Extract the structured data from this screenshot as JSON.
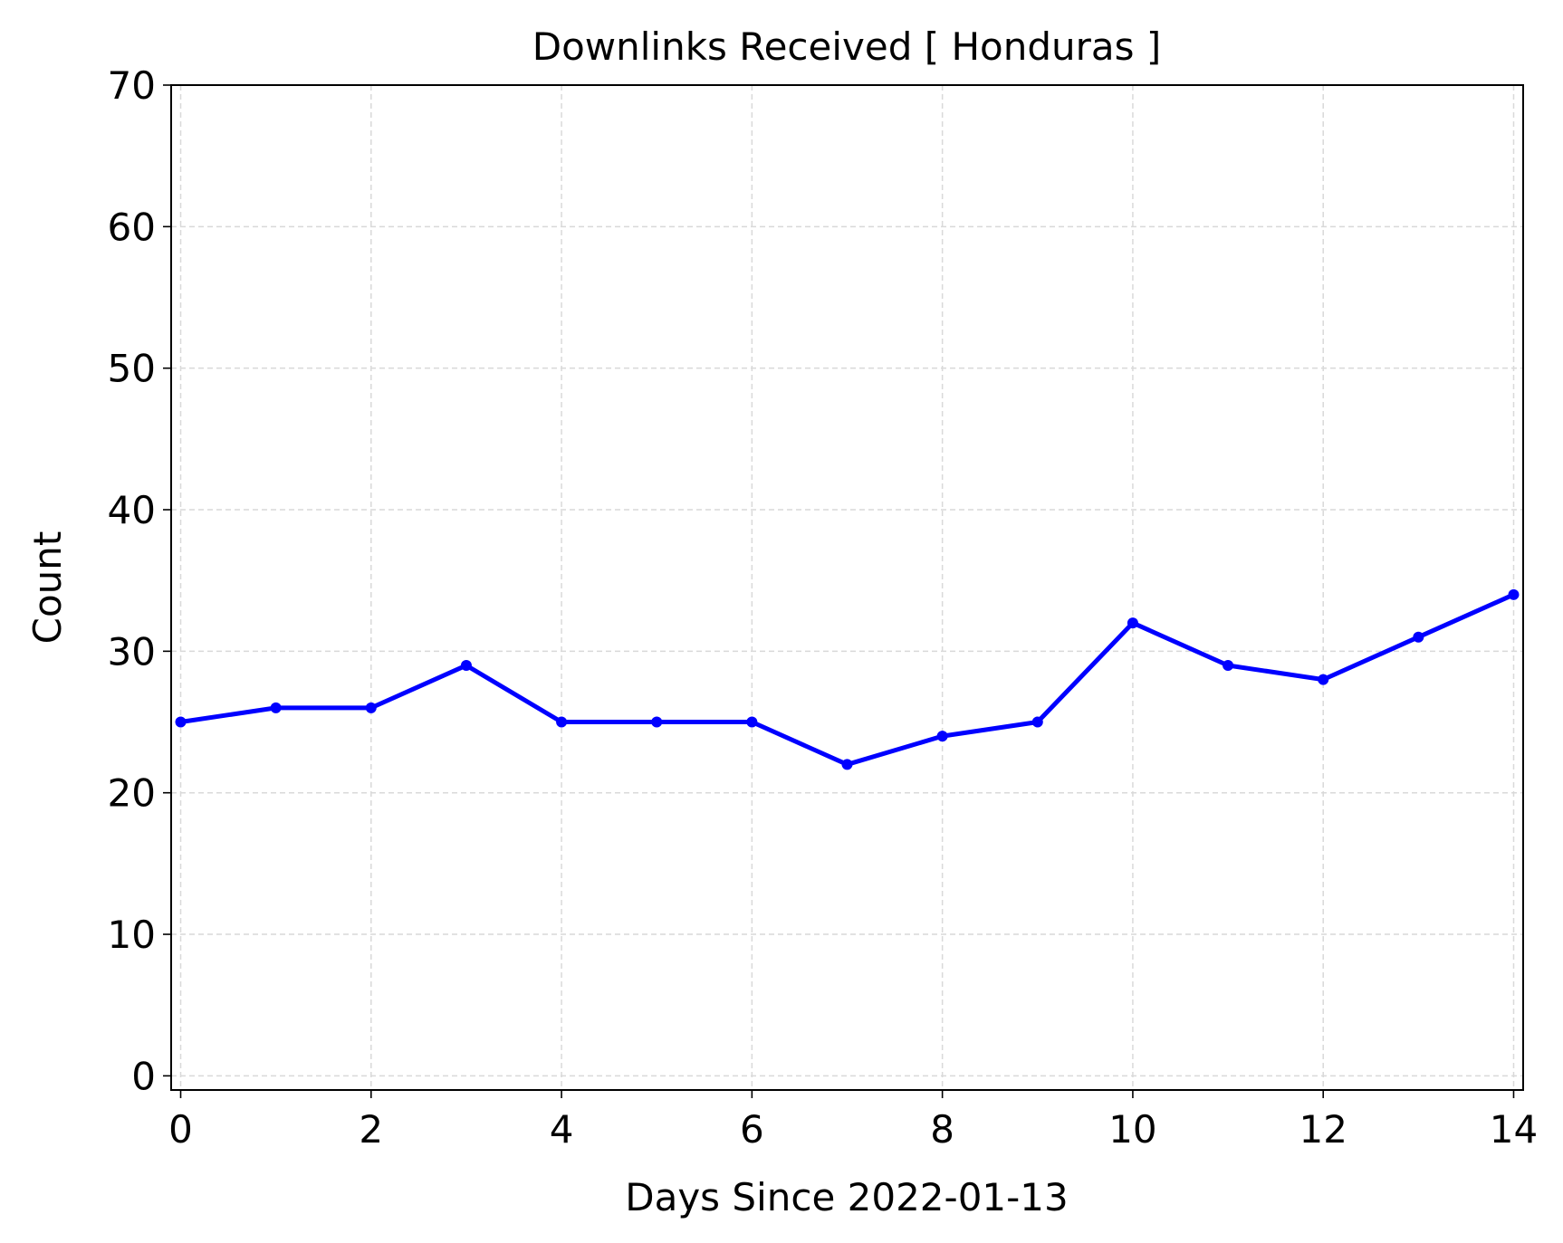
{
  "chart_data": {
    "type": "line",
    "title": "Downlinks Received [ Honduras ]",
    "xlabel": "Days Since 2022-01-13",
    "ylabel": "Count",
    "xlim": [
      -0.1,
      14.1
    ],
    "ylim": [
      -1,
      70
    ],
    "xticks": [
      0,
      2,
      4,
      6,
      8,
      10,
      12,
      14
    ],
    "yticks": [
      0,
      10,
      20,
      30,
      40,
      50,
      60,
      70
    ],
    "xtick_labels": [
      "0",
      "2",
      "4",
      "6",
      "8",
      "10",
      "12",
      "14"
    ],
    "ytick_labels": [
      "0",
      "10",
      "20",
      "30",
      "40",
      "50",
      "60",
      "70"
    ],
    "grid": true,
    "x": [
      0,
      1,
      2,
      3,
      4,
      5,
      6,
      7,
      8,
      9,
      10,
      11,
      12,
      13,
      14
    ],
    "series": [
      {
        "values": [
          25,
          26,
          26,
          29,
          25,
          25,
          25,
          22,
          24,
          25,
          32,
          29,
          28,
          31,
          34
        ],
        "color": "#0000ff",
        "marker": "circle"
      }
    ]
  }
}
